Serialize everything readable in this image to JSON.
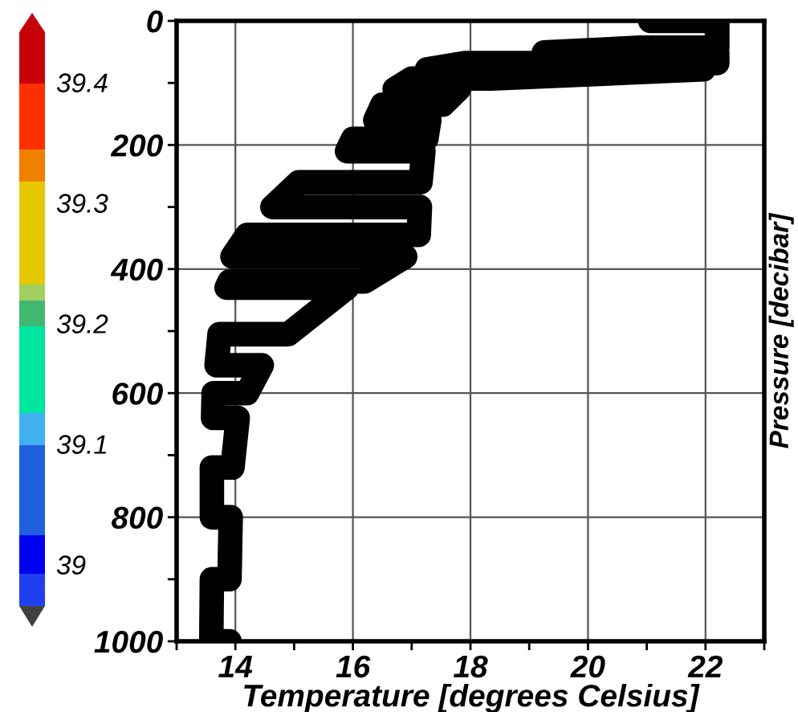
{
  "chart_data": {
    "type": "line",
    "xlabel": "Temperature [degrees Celsius]",
    "ylabel": "Pressure [decibar]",
    "annotations": [
      "39.4",
      "39.3",
      "39.2",
      "39.1",
      "39"
    ],
    "xlim": [
      13,
      23
    ],
    "xticks": [
      {
        "value": 13,
        "label": null
      },
      14,
      {
        "value": 15,
        "label": null
      },
      16,
      {
        "value": 17,
        "label": null
      },
      18,
      {
        "value": 19,
        "label": null
      },
      20,
      {
        "value": 21,
        "label": null
      },
      22,
      {
        "value": 23,
        "label": null
      }
    ],
    "ylim": [
      1000,
      0
    ],
    "yticks": [
      0,
      {
        "value": 100,
        "label": null
      },
      200,
      {
        "value": 300,
        "label": null
      },
      400,
      {
        "value": 500,
        "label": null
      },
      600,
      {
        "value": 700,
        "label": null
      },
      800,
      {
        "value": 900,
        "label": null
      },
      1000
    ],
    "grid": true,
    "line_style": "solid",
    "series": [
      {
        "color": "#000000",
        "x": [
          21.06,
          22.2,
          22.2,
          20.9,
          19.25,
          22.2,
          22.2,
          17.9,
          17.26,
          21.97,
          18.35,
          17.0,
          16.71,
          17.8,
          17.53,
          16.5,
          16.38,
          17.3,
          17.25,
          16.0,
          15.9,
          17.2,
          17.15,
          15.08,
          14.63,
          17.14,
          17.12,
          14.2,
          13.95,
          16.89,
          16.2,
          13.9,
          13.85,
          15.9,
          14.9,
          13.73,
          13.68,
          14.45,
          14.2,
          13.63,
          13.62,
          14.04,
          13.95,
          13.6,
          13.6,
          13.92,
          13.9,
          13.6,
          13.59,
          13.9
        ],
        "values": [
          0,
          0,
          43,
          43,
          51,
          51,
          68,
          68,
          78,
          78,
          93,
          93,
          110,
          110,
          135,
          135,
          160,
          160,
          190,
          190,
          210,
          210,
          260,
          260,
          300,
          300,
          345,
          345,
          380,
          380,
          420,
          420,
          430,
          430,
          505,
          505,
          555,
          555,
          600,
          600,
          640,
          640,
          720,
          720,
          800,
          800,
          900,
          900,
          1000,
          1000
        ]
      }
    ]
  }
}
